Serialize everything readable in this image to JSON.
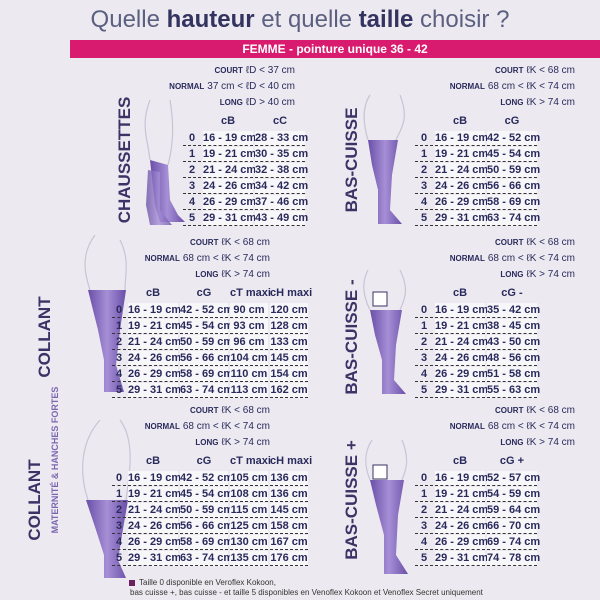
{
  "header": {
    "title": [
      "Quelle ",
      "hauteur",
      " et quelle ",
      "taille",
      " choisir ?"
    ],
    "banner": "FEMME - pointure unique 36 - 42"
  },
  "sections": [
    {
      "label": "CHAUSSETTES",
      "conditions": [
        {
          "key": "COURT",
          "text": "ℓD < 37 cm"
        },
        {
          "key": "NORMAL",
          "text": "37 cm < ℓD < 40 cm"
        },
        {
          "key": "LONG",
          "text": "ℓD > 40 cm"
        }
      ],
      "headers": [
        "cB",
        "cC"
      ],
      "rows": [
        [
          "0",
          "16 - 19 cm",
          "28 - 33 cm"
        ],
        [
          "1",
          "19 - 21 cm",
          "30 - 35 cm"
        ],
        [
          "2",
          "21 - 24 cm",
          "32 - 38 cm"
        ],
        [
          "3",
          "24 - 26 cm",
          "34 - 42 cm"
        ],
        [
          "4",
          "26 - 29 cm",
          "37 - 46 cm"
        ],
        [
          "5",
          "29 - 31 cm",
          "43 - 49 cm"
        ]
      ]
    },
    {
      "label": "BAS-CUISSE",
      "conditions": [
        {
          "key": "COURT",
          "text": "ℓK < 68 cm"
        },
        {
          "key": "NORMAL",
          "text": "68 cm < ℓK < 74 cm"
        },
        {
          "key": "LONG",
          "text": "ℓK > 74 cm"
        }
      ],
      "headers": [
        "cB",
        "cG"
      ],
      "rows": [
        [
          "0",
          "16 - 19 cm",
          "42 - 52 cm"
        ],
        [
          "1",
          "19 - 21 cm",
          "45 - 54 cm"
        ],
        [
          "2",
          "21 - 24 cm",
          "50 - 59 cm"
        ],
        [
          "3",
          "24 - 26 cm",
          "56 - 66 cm"
        ],
        [
          "4",
          "26 - 29 cm",
          "58 - 69 cm"
        ],
        [
          "5",
          "29 - 31 cm",
          "63 - 74 cm"
        ]
      ]
    },
    {
      "label": "COLLANT",
      "conditions": [
        {
          "key": "COURT",
          "text": "ℓK < 68 cm"
        },
        {
          "key": "NORMAL",
          "text": "68 cm < ℓK < 74 cm"
        },
        {
          "key": "LONG",
          "text": "ℓK > 74 cm"
        }
      ],
      "headers": [
        "cB",
        "cG",
        "cT maxi",
        "cH maxi"
      ],
      "rows": [
        [
          "0",
          "16 - 19 cm",
          "42 - 52 cm",
          "90 cm",
          "120 cm"
        ],
        [
          "1",
          "19 - 21 cm",
          "45 - 54 cm",
          "93 cm",
          "128 cm"
        ],
        [
          "2",
          "21 - 24 cm",
          "50 - 59 cm",
          "96 cm",
          "133 cm"
        ],
        [
          "3",
          "24 - 26 cm",
          "56 - 66 cm",
          "104 cm",
          "145 cm"
        ],
        [
          "4",
          "26 - 29 cm",
          "58 - 69 cm",
          "110 cm",
          "154 cm"
        ],
        [
          "5",
          "29 - 31 cm",
          "63 - 74 cm",
          "113 cm",
          "162 cm"
        ]
      ]
    },
    {
      "label": "BAS-CUISSE -",
      "conditions": [
        {
          "key": "COURT",
          "text": "ℓK < 68 cm"
        },
        {
          "key": "NORMAL",
          "text": "68 cm < ℓK < 74 cm"
        },
        {
          "key": "LONG",
          "text": "ℓK > 74 cm"
        }
      ],
      "headers": [
        "cB",
        "cG -"
      ],
      "rows": [
        [
          "0",
          "16 - 19 cm",
          "35 - 42 cm"
        ],
        [
          "1",
          "19 - 21 cm",
          "38 - 45 cm"
        ],
        [
          "2",
          "21 - 24 cm",
          "43 - 50 cm"
        ],
        [
          "3",
          "24 - 26 cm",
          "48 - 56 cm"
        ],
        [
          "4",
          "26 - 29 cm",
          "51 - 58 cm"
        ],
        [
          "5",
          "29 - 31 cm",
          "55 - 63 cm"
        ]
      ]
    },
    {
      "label": "COLLANT",
      "sublabel": "MATERNITÉ & HANCHES FORTES",
      "conditions": [
        {
          "key": "COURT",
          "text": "ℓK < 68 cm"
        },
        {
          "key": "NORMAL",
          "text": "68 cm < ℓK < 74 cm"
        },
        {
          "key": "LONG",
          "text": "ℓK > 74 cm"
        }
      ],
      "headers": [
        "cB",
        "cG",
        "cT maxi",
        "cH maxi"
      ],
      "rows": [
        [
          "0",
          "16 - 19 cm",
          "42 - 52 cm",
          "105 cm",
          "136 cm"
        ],
        [
          "1",
          "19 - 21 cm",
          "45 - 54 cm",
          "108 cm",
          "136 cm"
        ],
        [
          "2",
          "21 - 24 cm",
          "50 - 59 cm",
          "115 cm",
          "145 cm"
        ],
        [
          "3",
          "24 - 26 cm",
          "56 - 66 cm",
          "125 cm",
          "158 cm"
        ],
        [
          "4",
          "26 - 29 cm",
          "58 - 69 cm",
          "130 cm",
          "167 cm"
        ],
        [
          "5",
          "29 - 31 cm",
          "63 - 74 cm",
          "135 cm",
          "176 cm"
        ]
      ]
    },
    {
      "label": "BAS-CUISSE +",
      "conditions": [
        {
          "key": "COURT",
          "text": "ℓK < 68 cm"
        },
        {
          "key": "NORMAL",
          "text": "68 cm < ℓK < 74 cm"
        },
        {
          "key": "LONG",
          "text": "ℓK > 74 cm"
        }
      ],
      "headers": [
        "cB",
        "cG +"
      ],
      "rows": [
        [
          "0",
          "16 - 19 cm",
          "52 - 57 cm"
        ],
        [
          "1",
          "19 - 21 cm",
          "54 - 59 cm"
        ],
        [
          "2",
          "21 - 24 cm",
          "59 - 64 cm"
        ],
        [
          "3",
          "24 - 26 cm",
          "66 - 70 cm"
        ],
        [
          "4",
          "26 - 29 cm",
          "69 - 74 cm"
        ],
        [
          "5",
          "29 - 31 cm",
          "74 - 78 cm"
        ]
      ]
    }
  ],
  "footnote": [
    "Taille 0 disponible en Veroflex Kokoon,",
    "bas cuisse +, bas cuisse - et taille 5 disponibles en Venoflex Kokoon et Venoflex Secret uniquement"
  ]
}
